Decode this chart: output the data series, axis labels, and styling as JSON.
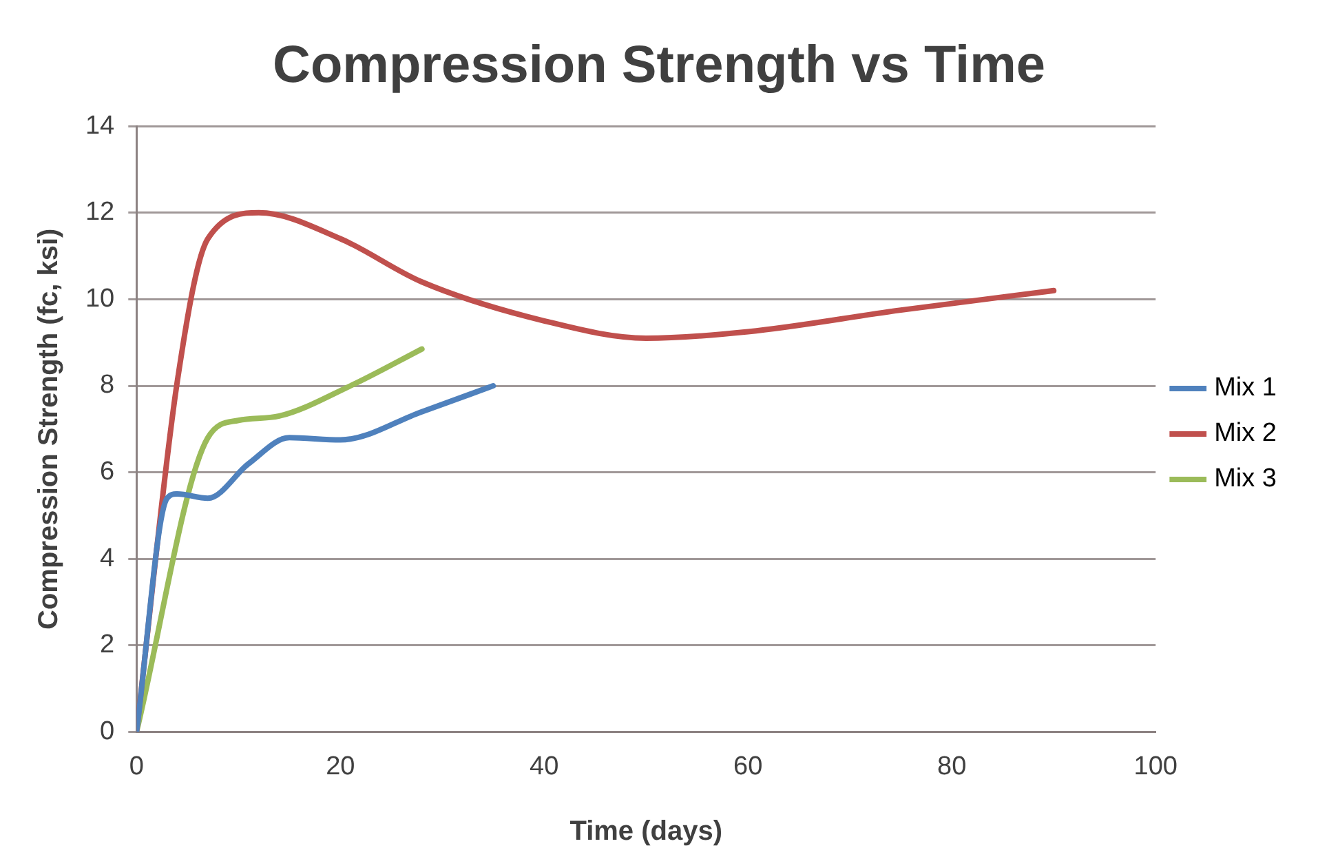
{
  "chart_data": {
    "type": "line",
    "title": "Compression Strength vs Time",
    "xlabel": "Time (days)",
    "ylabel": "Compression Strength (fc, ksi)",
    "xlim": [
      0,
      100
    ],
    "xticks": [
      0,
      20,
      40,
      60,
      80,
      100
    ],
    "ylim": [
      0,
      14
    ],
    "yticks": [
      0,
      2,
      4,
      6,
      8,
      10,
      12,
      14
    ],
    "grid": "y",
    "legend": "right",
    "marker": "none",
    "line_style": "solid",
    "series": [
      {
        "name": "Mix 1",
        "color": "#4f81bd",
        "x": [
          0,
          3,
          4,
          7,
          11,
          15,
          20,
          28,
          35
        ],
        "values": [
          0,
          5.4,
          5.5,
          5.4,
          6.2,
          6.8,
          6.75,
          7.4,
          8.0
        ]
      },
      {
        "name": "Mix 2",
        "color": "#c0504d",
        "x": [
          0,
          4,
          7,
          12,
          20,
          28,
          40,
          50,
          60,
          75,
          90
        ],
        "values": [
          0,
          8.1,
          11.4,
          12.0,
          11.4,
          10.4,
          9.5,
          9.1,
          9.25,
          9.75,
          10.2
        ]
      },
      {
        "name": "Mix 3",
        "color": "#9bbb59",
        "x": [
          0,
          7,
          10,
          14,
          21,
          28
        ],
        "values": [
          0,
          6.8,
          7.2,
          7.3,
          8.0,
          8.85
        ]
      }
    ]
  }
}
